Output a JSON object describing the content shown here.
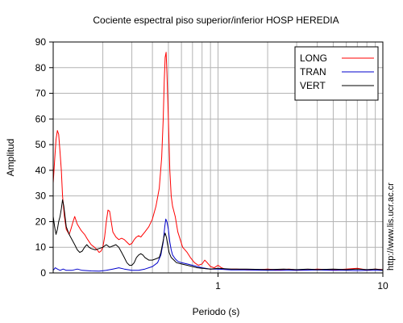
{
  "chart_data": {
    "type": "line",
    "title": "Cociente espectral piso superior/inferior  HOSP HEREDIA",
    "xlabel": "Periodo (s)",
    "ylabel": "Amplitud",
    "x_scale": "log",
    "xlim": [
      0.1,
      10
    ],
    "ylim": [
      0,
      90
    ],
    "x_tick_labels": [
      "1",
      "10"
    ],
    "y_ticks": [
      0,
      10,
      20,
      30,
      40,
      50,
      60,
      70,
      80,
      90
    ],
    "grid": true,
    "legend_position": "top-right",
    "side_text": "http://www.lis.ucr.ac.cr",
    "series": [
      {
        "name": "LONG",
        "color": "#ff0000",
        "points": [
          [
            0.1,
            35
          ],
          [
            0.102,
            44
          ],
          [
            0.104,
            52
          ],
          [
            0.106,
            55.5
          ],
          [
            0.108,
            54
          ],
          [
            0.11,
            47
          ],
          [
            0.112,
            40
          ],
          [
            0.114,
            30
          ],
          [
            0.117,
            22
          ],
          [
            0.12,
            17
          ],
          [
            0.125,
            15
          ],
          [
            0.128,
            17
          ],
          [
            0.132,
            20
          ],
          [
            0.135,
            22
          ],
          [
            0.14,
            19
          ],
          [
            0.148,
            16.5
          ],
          [
            0.155,
            15
          ],
          [
            0.162,
            13
          ],
          [
            0.17,
            11
          ],
          [
            0.178,
            10
          ],
          [
            0.185,
            9
          ],
          [
            0.19,
            8
          ],
          [
            0.195,
            8.5
          ],
          [
            0.2,
            10
          ],
          [
            0.205,
            14
          ],
          [
            0.21,
            20
          ],
          [
            0.215,
            24.5
          ],
          [
            0.22,
            24
          ],
          [
            0.225,
            20
          ],
          [
            0.23,
            16
          ],
          [
            0.24,
            14
          ],
          [
            0.25,
            13
          ],
          [
            0.26,
            13.5
          ],
          [
            0.27,
            13
          ],
          [
            0.28,
            12
          ],
          [
            0.29,
            11
          ],
          [
            0.3,
            11.5
          ],
          [
            0.31,
            13
          ],
          [
            0.32,
            14
          ],
          [
            0.33,
            14.5
          ],
          [
            0.34,
            14
          ],
          [
            0.36,
            16
          ],
          [
            0.38,
            18
          ],
          [
            0.4,
            21
          ],
          [
            0.42,
            26
          ],
          [
            0.44,
            33
          ],
          [
            0.455,
            45
          ],
          [
            0.465,
            60
          ],
          [
            0.472,
            75
          ],
          [
            0.478,
            84
          ],
          [
            0.484,
            86
          ],
          [
            0.49,
            78
          ],
          [
            0.5,
            60
          ],
          [
            0.51,
            40
          ],
          [
            0.52,
            30
          ],
          [
            0.53,
            26
          ],
          [
            0.55,
            22
          ],
          [
            0.57,
            16
          ],
          [
            0.59,
            13
          ],
          [
            0.61,
            10
          ],
          [
            0.63,
            9
          ],
          [
            0.65,
            8
          ],
          [
            0.68,
            6
          ],
          [
            0.72,
            4
          ],
          [
            0.76,
            3
          ],
          [
            0.8,
            3.5
          ],
          [
            0.83,
            5
          ],
          [
            0.86,
            4
          ],
          [
            0.9,
            2.5
          ],
          [
            0.95,
            2
          ],
          [
            1.0,
            3
          ],
          [
            1.05,
            2
          ],
          [
            1.1,
            1.5
          ],
          [
            1.2,
            1.5
          ],
          [
            1.3,
            1.5
          ],
          [
            1.5,
            1.2
          ],
          [
            1.7,
            1.2
          ],
          [
            2.0,
            1.5
          ],
          [
            2.3,
            1.2
          ],
          [
            2.7,
            1.5
          ],
          [
            3.0,
            1.2
          ],
          [
            3.5,
            1.2
          ],
          [
            4.0,
            1.5
          ],
          [
            5.0,
            1.2
          ],
          [
            6.0,
            1.5
          ],
          [
            7.0,
            1.8
          ],
          [
            8.0,
            1.2
          ],
          [
            9.0,
            1.5
          ],
          [
            10.0,
            1.3
          ]
        ]
      },
      {
        "name": "TRAN",
        "color": "#0000cc",
        "points": [
          [
            0.1,
            1
          ],
          [
            0.103,
            2
          ],
          [
            0.106,
            1.5
          ],
          [
            0.11,
            1
          ],
          [
            0.115,
            1.5
          ],
          [
            0.12,
            1
          ],
          [
            0.13,
            1
          ],
          [
            0.14,
            1.5
          ],
          [
            0.15,
            1
          ],
          [
            0.17,
            0.8
          ],
          [
            0.19,
            0.7
          ],
          [
            0.21,
            1
          ],
          [
            0.23,
            1.5
          ],
          [
            0.25,
            2
          ],
          [
            0.27,
            1.5
          ],
          [
            0.3,
            1
          ],
          [
            0.33,
            1
          ],
          [
            0.36,
            1.5
          ],
          [
            0.4,
            2.5
          ],
          [
            0.43,
            4
          ],
          [
            0.45,
            7
          ],
          [
            0.465,
            12
          ],
          [
            0.475,
            18
          ],
          [
            0.482,
            21
          ],
          [
            0.49,
            20
          ],
          [
            0.5,
            17
          ],
          [
            0.51,
            12
          ],
          [
            0.52,
            9
          ],
          [
            0.53,
            7
          ],
          [
            0.55,
            5.5
          ],
          [
            0.57,
            4.5
          ],
          [
            0.6,
            4
          ],
          [
            0.65,
            3.5
          ],
          [
            0.7,
            3
          ],
          [
            0.75,
            2.5
          ],
          [
            0.8,
            2
          ],
          [
            0.9,
            1.5
          ],
          [
            1.0,
            1.5
          ],
          [
            1.2,
            1.2
          ],
          [
            1.5,
            1.2
          ],
          [
            2.0,
            1
          ],
          [
            2.5,
            1
          ],
          [
            3.0,
            1
          ],
          [
            4.0,
            1.2
          ],
          [
            5.0,
            1
          ],
          [
            6.0,
            1
          ],
          [
            7.0,
            0.9
          ],
          [
            8.0,
            1
          ],
          [
            10.0,
            1
          ]
        ]
      },
      {
        "name": "VERT",
        "color": "#000000",
        "points": [
          [
            0.1,
            22
          ],
          [
            0.102,
            18
          ],
          [
            0.104,
            15
          ],
          [
            0.106,
            17
          ],
          [
            0.108,
            20
          ],
          [
            0.11,
            22
          ],
          [
            0.112,
            25
          ],
          [
            0.114,
            28.5
          ],
          [
            0.116,
            26
          ],
          [
            0.118,
            22
          ],
          [
            0.12,
            18
          ],
          [
            0.125,
            15
          ],
          [
            0.13,
            13
          ],
          [
            0.135,
            11
          ],
          [
            0.14,
            9
          ],
          [
            0.145,
            8
          ],
          [
            0.15,
            8.5
          ],
          [
            0.155,
            10
          ],
          [
            0.16,
            11
          ],
          [
            0.165,
            10
          ],
          [
            0.17,
            9.5
          ],
          [
            0.18,
            9
          ],
          [
            0.19,
            9.5
          ],
          [
            0.2,
            10
          ],
          [
            0.21,
            11
          ],
          [
            0.22,
            10
          ],
          [
            0.23,
            10.5
          ],
          [
            0.24,
            11
          ],
          [
            0.25,
            10
          ],
          [
            0.26,
            8
          ],
          [
            0.27,
            6
          ],
          [
            0.28,
            4
          ],
          [
            0.29,
            3
          ],
          [
            0.3,
            3
          ],
          [
            0.31,
            4
          ],
          [
            0.32,
            6
          ],
          [
            0.33,
            7
          ],
          [
            0.34,
            7.5
          ],
          [
            0.35,
            7
          ],
          [
            0.36,
            6
          ],
          [
            0.38,
            5
          ],
          [
            0.4,
            5
          ],
          [
            0.42,
            5.5
          ],
          [
            0.44,
            6
          ],
          [
            0.45,
            8
          ],
          [
            0.46,
            11
          ],
          [
            0.47,
            14
          ],
          [
            0.478,
            15.5
          ],
          [
            0.486,
            14
          ],
          [
            0.495,
            11
          ],
          [
            0.505,
            8
          ],
          [
            0.52,
            6
          ],
          [
            0.54,
            5
          ],
          [
            0.56,
            4
          ],
          [
            0.6,
            3.5
          ],
          [
            0.65,
            3
          ],
          [
            0.7,
            2.5
          ],
          [
            0.75,
            2
          ],
          [
            0.8,
            1.8
          ],
          [
            0.9,
            1.5
          ],
          [
            1.0,
            1.8
          ],
          [
            1.2,
            1.5
          ],
          [
            1.5,
            1.5
          ],
          [
            2.0,
            1.3
          ],
          [
            2.5,
            1.5
          ],
          [
            3.0,
            1.3
          ],
          [
            3.5,
            1.5
          ],
          [
            4.0,
            1.3
          ],
          [
            5.0,
            1.5
          ],
          [
            6.0,
            1.3
          ],
          [
            7.0,
            1.5
          ],
          [
            8.0,
            1.3
          ],
          [
            9.0,
            1.5
          ],
          [
            10.0,
            1.2
          ]
        ]
      }
    ]
  }
}
